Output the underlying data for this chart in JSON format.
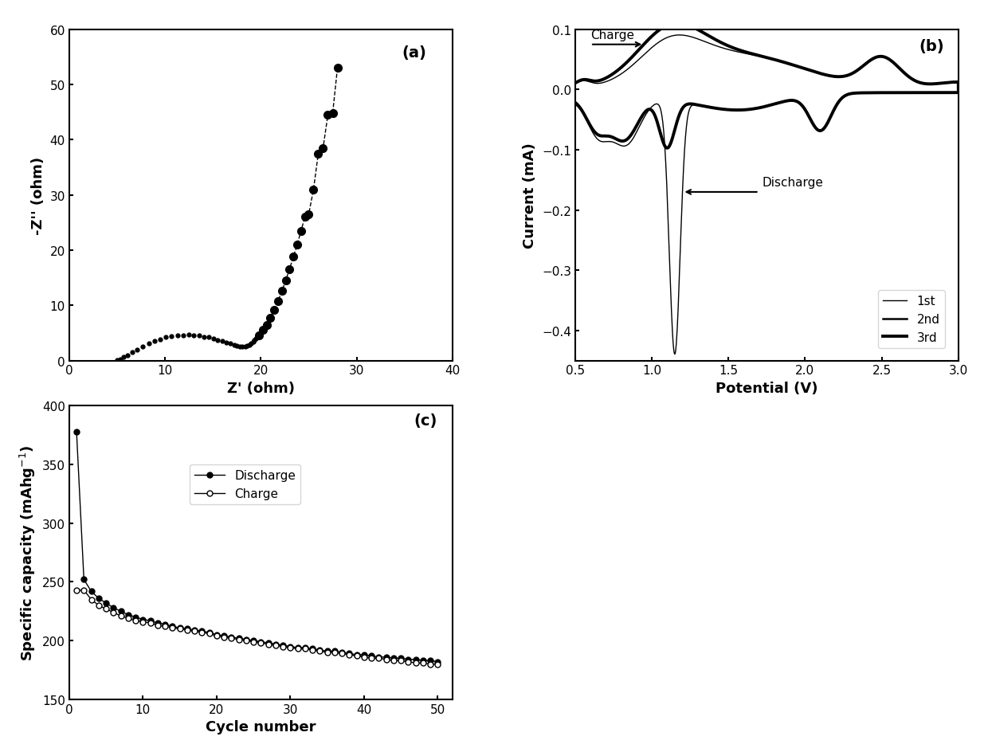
{
  "fig_width": 12.4,
  "fig_height": 9.45,
  "panel_a": {
    "label": "(a)",
    "xlabel": "Z' (ohm)",
    "ylabel": "-Z'' (ohm)",
    "xlim": [
      0,
      40
    ],
    "ylim": [
      0,
      60
    ],
    "xticks": [
      0,
      10,
      20,
      30,
      40
    ],
    "yticks": [
      0,
      10,
      20,
      30,
      40,
      50,
      60
    ],
    "semicircle_x": [
      5.0,
      5.3,
      5.7,
      6.1,
      6.6,
      7.1,
      7.7,
      8.3,
      8.9,
      9.5,
      10.1,
      10.7,
      11.3,
      11.9,
      12.5,
      13.0,
      13.6,
      14.1,
      14.6,
      15.1,
      15.5,
      16.0,
      16.4,
      16.8,
      17.2,
      17.5,
      17.8,
      18.1,
      18.4,
      18.6,
      18.8,
      19.0,
      19.2,
      19.3,
      19.5
    ],
    "semicircle_y": [
      0.1,
      0.3,
      0.6,
      1.0,
      1.5,
      2.0,
      2.5,
      3.1,
      3.5,
      3.9,
      4.2,
      4.4,
      4.5,
      4.6,
      4.7,
      4.6,
      4.5,
      4.3,
      4.2,
      4.0,
      3.7,
      3.5,
      3.3,
      3.1,
      2.9,
      2.7,
      2.6,
      2.5,
      2.6,
      2.7,
      2.9,
      3.1,
      3.4,
      3.7,
      4.0
    ],
    "tail_x": [
      19.8,
      20.2,
      20.6,
      21.0,
      21.4,
      21.8,
      22.2,
      22.6,
      23.0,
      23.4,
      23.8,
      24.2,
      24.6,
      25.0,
      25.5,
      26.0,
      26.5,
      27.0,
      27.5,
      28.0
    ],
    "tail_y": [
      4.5,
      5.5,
      6.5,
      7.8,
      9.2,
      10.8,
      12.6,
      14.5,
      16.6,
      18.8,
      21.0,
      23.5,
      26.0,
      26.5,
      31.0,
      37.5,
      38.5,
      44.5,
      44.8,
      53.0
    ]
  },
  "panel_b": {
    "label": "(b)",
    "xlabel": "Potential (V)",
    "ylabel": "Current (mA)",
    "xlim": [
      0.5,
      3.0
    ],
    "ylim": [
      -0.45,
      0.1
    ],
    "xticks": [
      0.5,
      1.0,
      1.5,
      2.0,
      2.5,
      3.0
    ],
    "yticks": [
      -0.4,
      -0.3,
      -0.2,
      -0.1,
      0.0,
      0.1
    ]
  },
  "panel_c": {
    "label": "(c)",
    "xlabel": "Cycle number",
    "ylabel": "Specific capacity (mAhg$^{-1}$)",
    "xlim": [
      0,
      52
    ],
    "ylim": [
      150,
      400
    ],
    "xticks": [
      0,
      10,
      20,
      30,
      40,
      50
    ],
    "yticks": [
      150,
      200,
      250,
      300,
      350,
      400
    ],
    "discharge_x": [
      1,
      2,
      3,
      4,
      5,
      6,
      7,
      8,
      9,
      10,
      11,
      12,
      13,
      14,
      15,
      16,
      17,
      18,
      19,
      20,
      21,
      22,
      23,
      24,
      25,
      26,
      27,
      28,
      29,
      30,
      31,
      32,
      33,
      34,
      35,
      36,
      37,
      38,
      39,
      40,
      41,
      42,
      43,
      44,
      45,
      46,
      47,
      48,
      49,
      50
    ],
    "discharge_y": [
      378,
      252,
      242,
      236,
      232,
      228,
      225,
      222,
      220,
      218,
      217,
      215,
      214,
      212,
      211,
      210,
      209,
      208,
      207,
      205,
      204,
      203,
      202,
      201,
      200,
      199,
      198,
      197,
      196,
      195,
      194,
      194,
      193,
      192,
      191,
      191,
      190,
      189,
      188,
      188,
      187,
      186,
      186,
      185,
      185,
      184,
      184,
      183,
      183,
      182
    ],
    "charge_x": [
      1,
      2,
      3,
      4,
      5,
      6,
      7,
      8,
      9,
      10,
      11,
      12,
      13,
      14,
      15,
      16,
      17,
      18,
      19,
      20,
      21,
      22,
      23,
      24,
      25,
      26,
      27,
      28,
      29,
      30,
      31,
      32,
      33,
      34,
      35,
      36,
      37,
      38,
      39,
      40,
      41,
      42,
      43,
      44,
      45,
      46,
      47,
      48,
      49,
      50
    ],
    "charge_y": [
      243,
      243,
      235,
      230,
      227,
      224,
      221,
      219,
      217,
      216,
      215,
      213,
      212,
      211,
      210,
      209,
      208,
      207,
      206,
      204,
      203,
      202,
      201,
      200,
      199,
      198,
      197,
      196,
      195,
      194,
      193,
      193,
      192,
      191,
      190,
      190,
      189,
      188,
      187,
      186,
      185,
      185,
      184,
      183,
      183,
      182,
      181,
      181,
      180,
      180
    ]
  }
}
